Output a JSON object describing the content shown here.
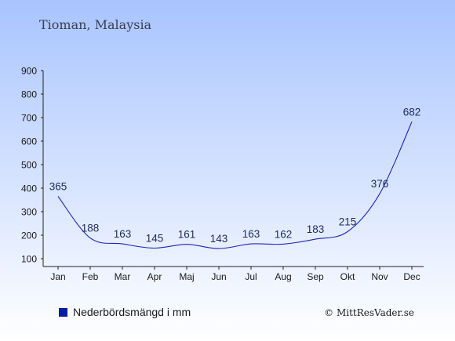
{
  "header": {
    "title": "Tioman, Malaysia"
  },
  "legend": {
    "label": "Nederbördsmängd i mm",
    "position": "bottom-left"
  },
  "footer": {
    "copyright": "© MittResVader.se"
  },
  "colors": {
    "background_top": "#a8c4ff",
    "background_bottom": "#ffffff",
    "line": "#1a23b5",
    "legend_swatch": "#0a1aa8",
    "text": "#1c2a5a"
  },
  "chart_data": {
    "type": "line",
    "categories": [
      "Jan",
      "Feb",
      "Mar",
      "Apr",
      "Maj",
      "Jun",
      "Jul",
      "Aug",
      "Sep",
      "Okt",
      "Nov",
      "Dec"
    ],
    "series": [
      {
        "name": "Nederbördsmängd i mm",
        "values": [
          365,
          188,
          163,
          145,
          161,
          143,
          163,
          162,
          183,
          215,
          376,
          682
        ]
      }
    ],
    "data_labels": [
      "365",
      "188",
      "163",
      "145",
      "161",
      "143",
      "163",
      "162",
      "183",
      "215",
      "376",
      "682"
    ],
    "ylim": [
      100,
      900
    ],
    "yticks": [
      100,
      200,
      300,
      400,
      500,
      600,
      700,
      800,
      900
    ],
    "ytick_labels": [
      "100",
      "200",
      "300",
      "400",
      "500",
      "600",
      "700",
      "800",
      "900"
    ],
    "grid": false
  }
}
